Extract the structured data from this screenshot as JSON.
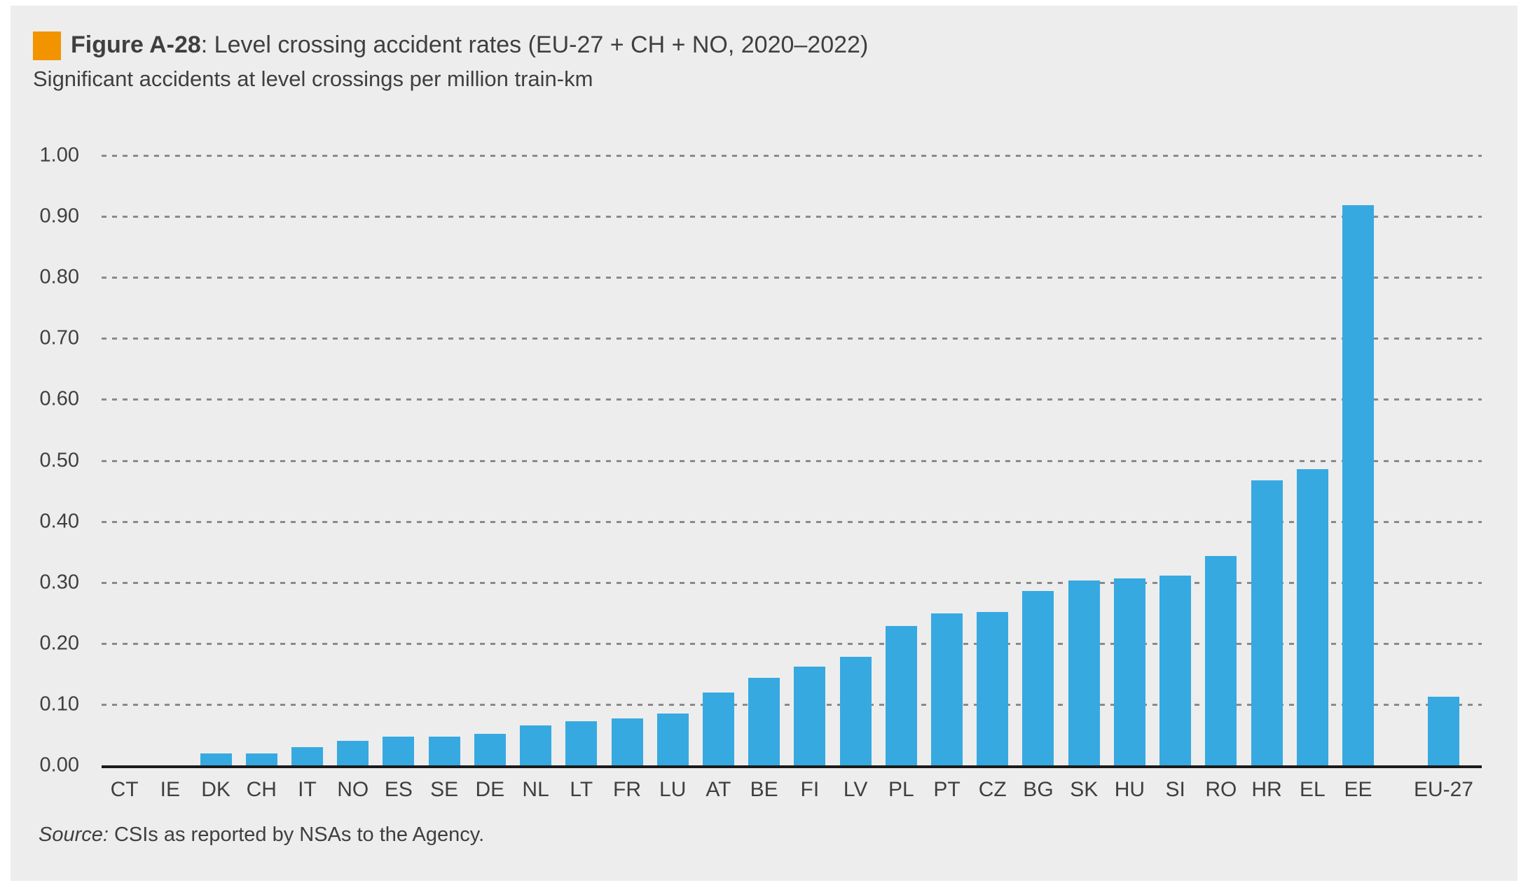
{
  "figure": {
    "label": "Figure A-28",
    "title_rest": ": Level crossing accident rates (EU-27 + CH + NO, 2020–2022)",
    "subtitle": "Significant accidents at level crossings per million train-km",
    "source_prefix": "Source:",
    "source_text": "CSIs as reported by NSAs to the Agency."
  },
  "chart_data": {
    "type": "bar",
    "title": "Figure A-28: Level crossing accident rates (EU-27 + CH + NO, 2020–2022)",
    "subtitle": "Significant accidents at level crossings per million train-km",
    "xlabel": "",
    "ylabel": "Significant accidents at level crossings per million train-km",
    "ylim": [
      0,
      1.0
    ],
    "ytick_labels": [
      "1.00",
      "0.90",
      "0.80",
      "0.70",
      "0.60",
      "0.50",
      "0.40",
      "0.30",
      "0.20",
      "0.10",
      "0.00"
    ],
    "grid": "horizontal-dashed-gray",
    "legend_position": "none",
    "bar_color": "#36A9E1",
    "categories": [
      "CT",
      "IE",
      "DK",
      "CH",
      "IT",
      "NO",
      "ES",
      "SE",
      "DE",
      "NL",
      "LT",
      "FR",
      "LU",
      "AT",
      "BE",
      "FI",
      "LV",
      "PL",
      "PT",
      "CZ",
      "BG",
      "SK",
      "HU",
      "SI",
      "RO",
      "HR",
      "EL",
      "EE",
      "EU-27"
    ],
    "values": [
      0,
      0,
      0.02,
      0.02,
      0.03,
      0.04,
      0.047,
      0.047,
      0.052,
      0.066,
      0.072,
      0.077,
      0.085,
      0.119,
      0.143,
      0.162,
      0.178,
      0.229,
      0.249,
      0.252,
      0.286,
      0.303,
      0.307,
      0.311,
      0.343,
      0.467,
      0.486,
      0.918,
      0.112
    ],
    "gap_before_last_category": true,
    "source": "Source: CSIs as reported by NSAs to the Agency."
  },
  "colors": {
    "panel_background": "#EDEDED",
    "bar": "#36A9E1",
    "accent_orange": "#F29400",
    "text": "#3F3F3E",
    "gridline": "#8A8A8A",
    "axis": "#1A1A1A"
  }
}
